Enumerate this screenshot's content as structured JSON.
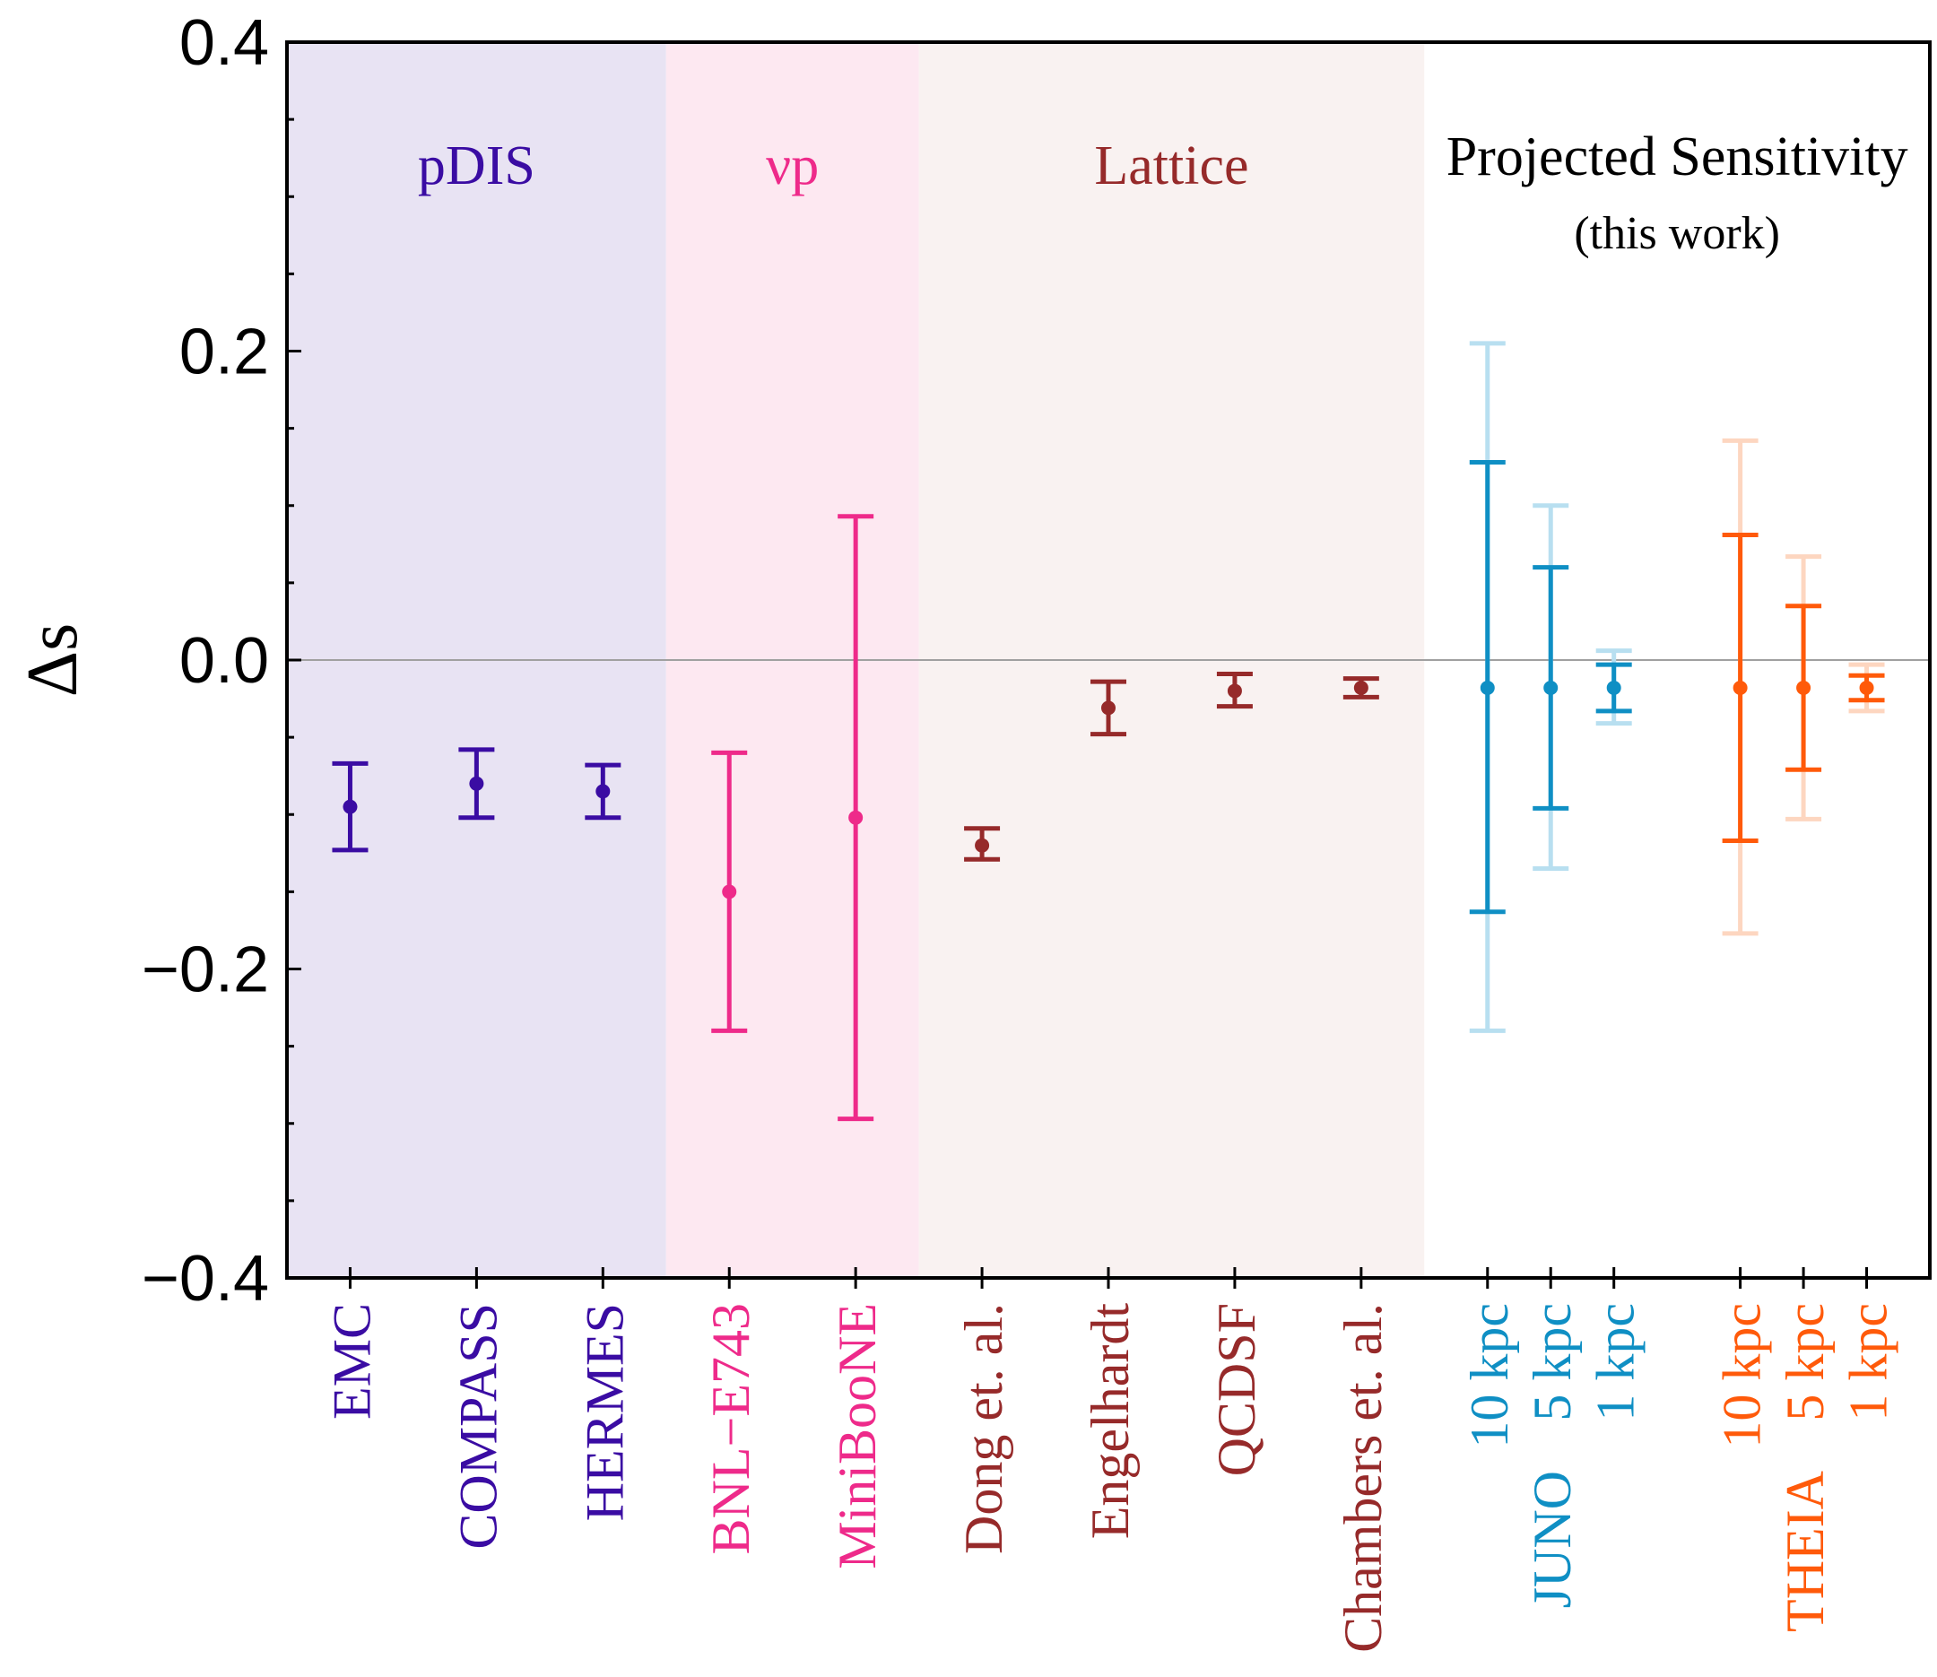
{
  "chart_data": {
    "type": "errorbar",
    "ylabel": "Δs",
    "ylim": [
      -0.4,
      0.4
    ],
    "yticks": [
      {
        "value": 0.4,
        "label": "0.4"
      },
      {
        "value": 0.2,
        "label": "0.2"
      },
      {
        "value": 0.0,
        "label": "0.0"
      },
      {
        "value": -0.2,
        "label": "−0.2"
      },
      {
        "value": -0.4,
        "label": "−0.4"
      }
    ],
    "colors": {
      "pdis": "#3a0ca3",
      "nup": "#ee2a8a",
      "lattice": "#962a2a",
      "juno": "#0f8fc4",
      "theia": "#ff5a0a",
      "juno_light": "#b8dff0",
      "theia_light": "#fdd6c0"
    },
    "regions": [
      {
        "key": "pdis",
        "label": "pDIS",
        "fill": "#e8e3f3",
        "x0": 0.0,
        "x1": 3.0
      },
      {
        "key": "nup",
        "label": "νp",
        "fill": "#fde8f1",
        "x0": 3.0,
        "x1": 5.0
      },
      {
        "key": "lattice",
        "label": "Lattice",
        "fill": "#f9f2f1",
        "x0": 5.0,
        "x1": 9.0
      },
      {
        "key": "proj",
        "label": "Projected Sensitivity",
        "label2": "(this work)",
        "fill": "#ffffff",
        "x0": 9.0,
        "x1": 13.0
      }
    ],
    "xlim": [
      0.0,
      13.0
    ],
    "series": [
      {
        "group": "pdis",
        "label": "EMC",
        "x": 0.5,
        "y": -0.095,
        "lo": -0.123,
        "hi": -0.067
      },
      {
        "group": "pdis",
        "label": "COMPASS",
        "x": 1.5,
        "y": -0.08,
        "lo": -0.102,
        "hi": -0.058
      },
      {
        "group": "pdis",
        "label": "HERMES",
        "x": 2.5,
        "y": -0.085,
        "lo": -0.102,
        "hi": -0.068
      },
      {
        "group": "nup",
        "label": "BNL−E743",
        "x": 3.5,
        "y": -0.15,
        "lo": -0.24,
        "hi": -0.06
      },
      {
        "group": "nup",
        "label": "MiniBooNE",
        "x": 4.5,
        "y": -0.102,
        "lo": -0.297,
        "hi": 0.093
      },
      {
        "group": "lattice",
        "label": "Dong et. al.",
        "x": 5.5,
        "y": -0.12,
        "lo": -0.129,
        "hi": -0.109
      },
      {
        "group": "lattice",
        "label": "Engelhardt",
        "x": 6.5,
        "y": -0.031,
        "lo": -0.048,
        "hi": -0.014
      },
      {
        "group": "lattice",
        "label": "QCDSF",
        "x": 7.5,
        "y": -0.02,
        "lo": -0.03,
        "hi": -0.009
      },
      {
        "group": "lattice",
        "label": "Chambers et. al.",
        "x": 8.5,
        "y": -0.018,
        "lo": -0.024,
        "hi": -0.012
      },
      {
        "group": "juno",
        "label": "10 kpc",
        "x": 9.5,
        "y": -0.018,
        "lo": -0.163,
        "hi": 0.128,
        "lo2": -0.24,
        "hi2": 0.205
      },
      {
        "group": "juno",
        "label": "5 kpc",
        "x": 10.0,
        "y": -0.018,
        "lo": -0.096,
        "hi": 0.06,
        "lo2": -0.135,
        "hi2": 0.1
      },
      {
        "group": "juno",
        "label": "1 kpc",
        "x": 10.5,
        "y": -0.018,
        "lo": -0.033,
        "hi": -0.003,
        "lo2": -0.041,
        "hi2": 0.006
      },
      {
        "group": "theia",
        "label": "10 kpc",
        "x": 11.5,
        "y": -0.018,
        "lo": -0.117,
        "hi": 0.081,
        "lo2": -0.177,
        "hi2": 0.142
      },
      {
        "group": "theia",
        "label": "5 kpc",
        "x": 12.0,
        "y": -0.018,
        "lo": -0.071,
        "hi": 0.035,
        "lo2": -0.103,
        "hi2": 0.067
      },
      {
        "group": "theia",
        "label": "1 kpc",
        "x": 12.5,
        "y": -0.018,
        "lo": -0.026,
        "hi": -0.01,
        "lo2": -0.033,
        "hi2": -0.003
      }
    ],
    "experiment_labels": [
      {
        "group": "juno",
        "label": "JUNO",
        "x": 10.0
      },
      {
        "group": "theia",
        "label": "THEIA",
        "x": 12.0
      }
    ]
  }
}
